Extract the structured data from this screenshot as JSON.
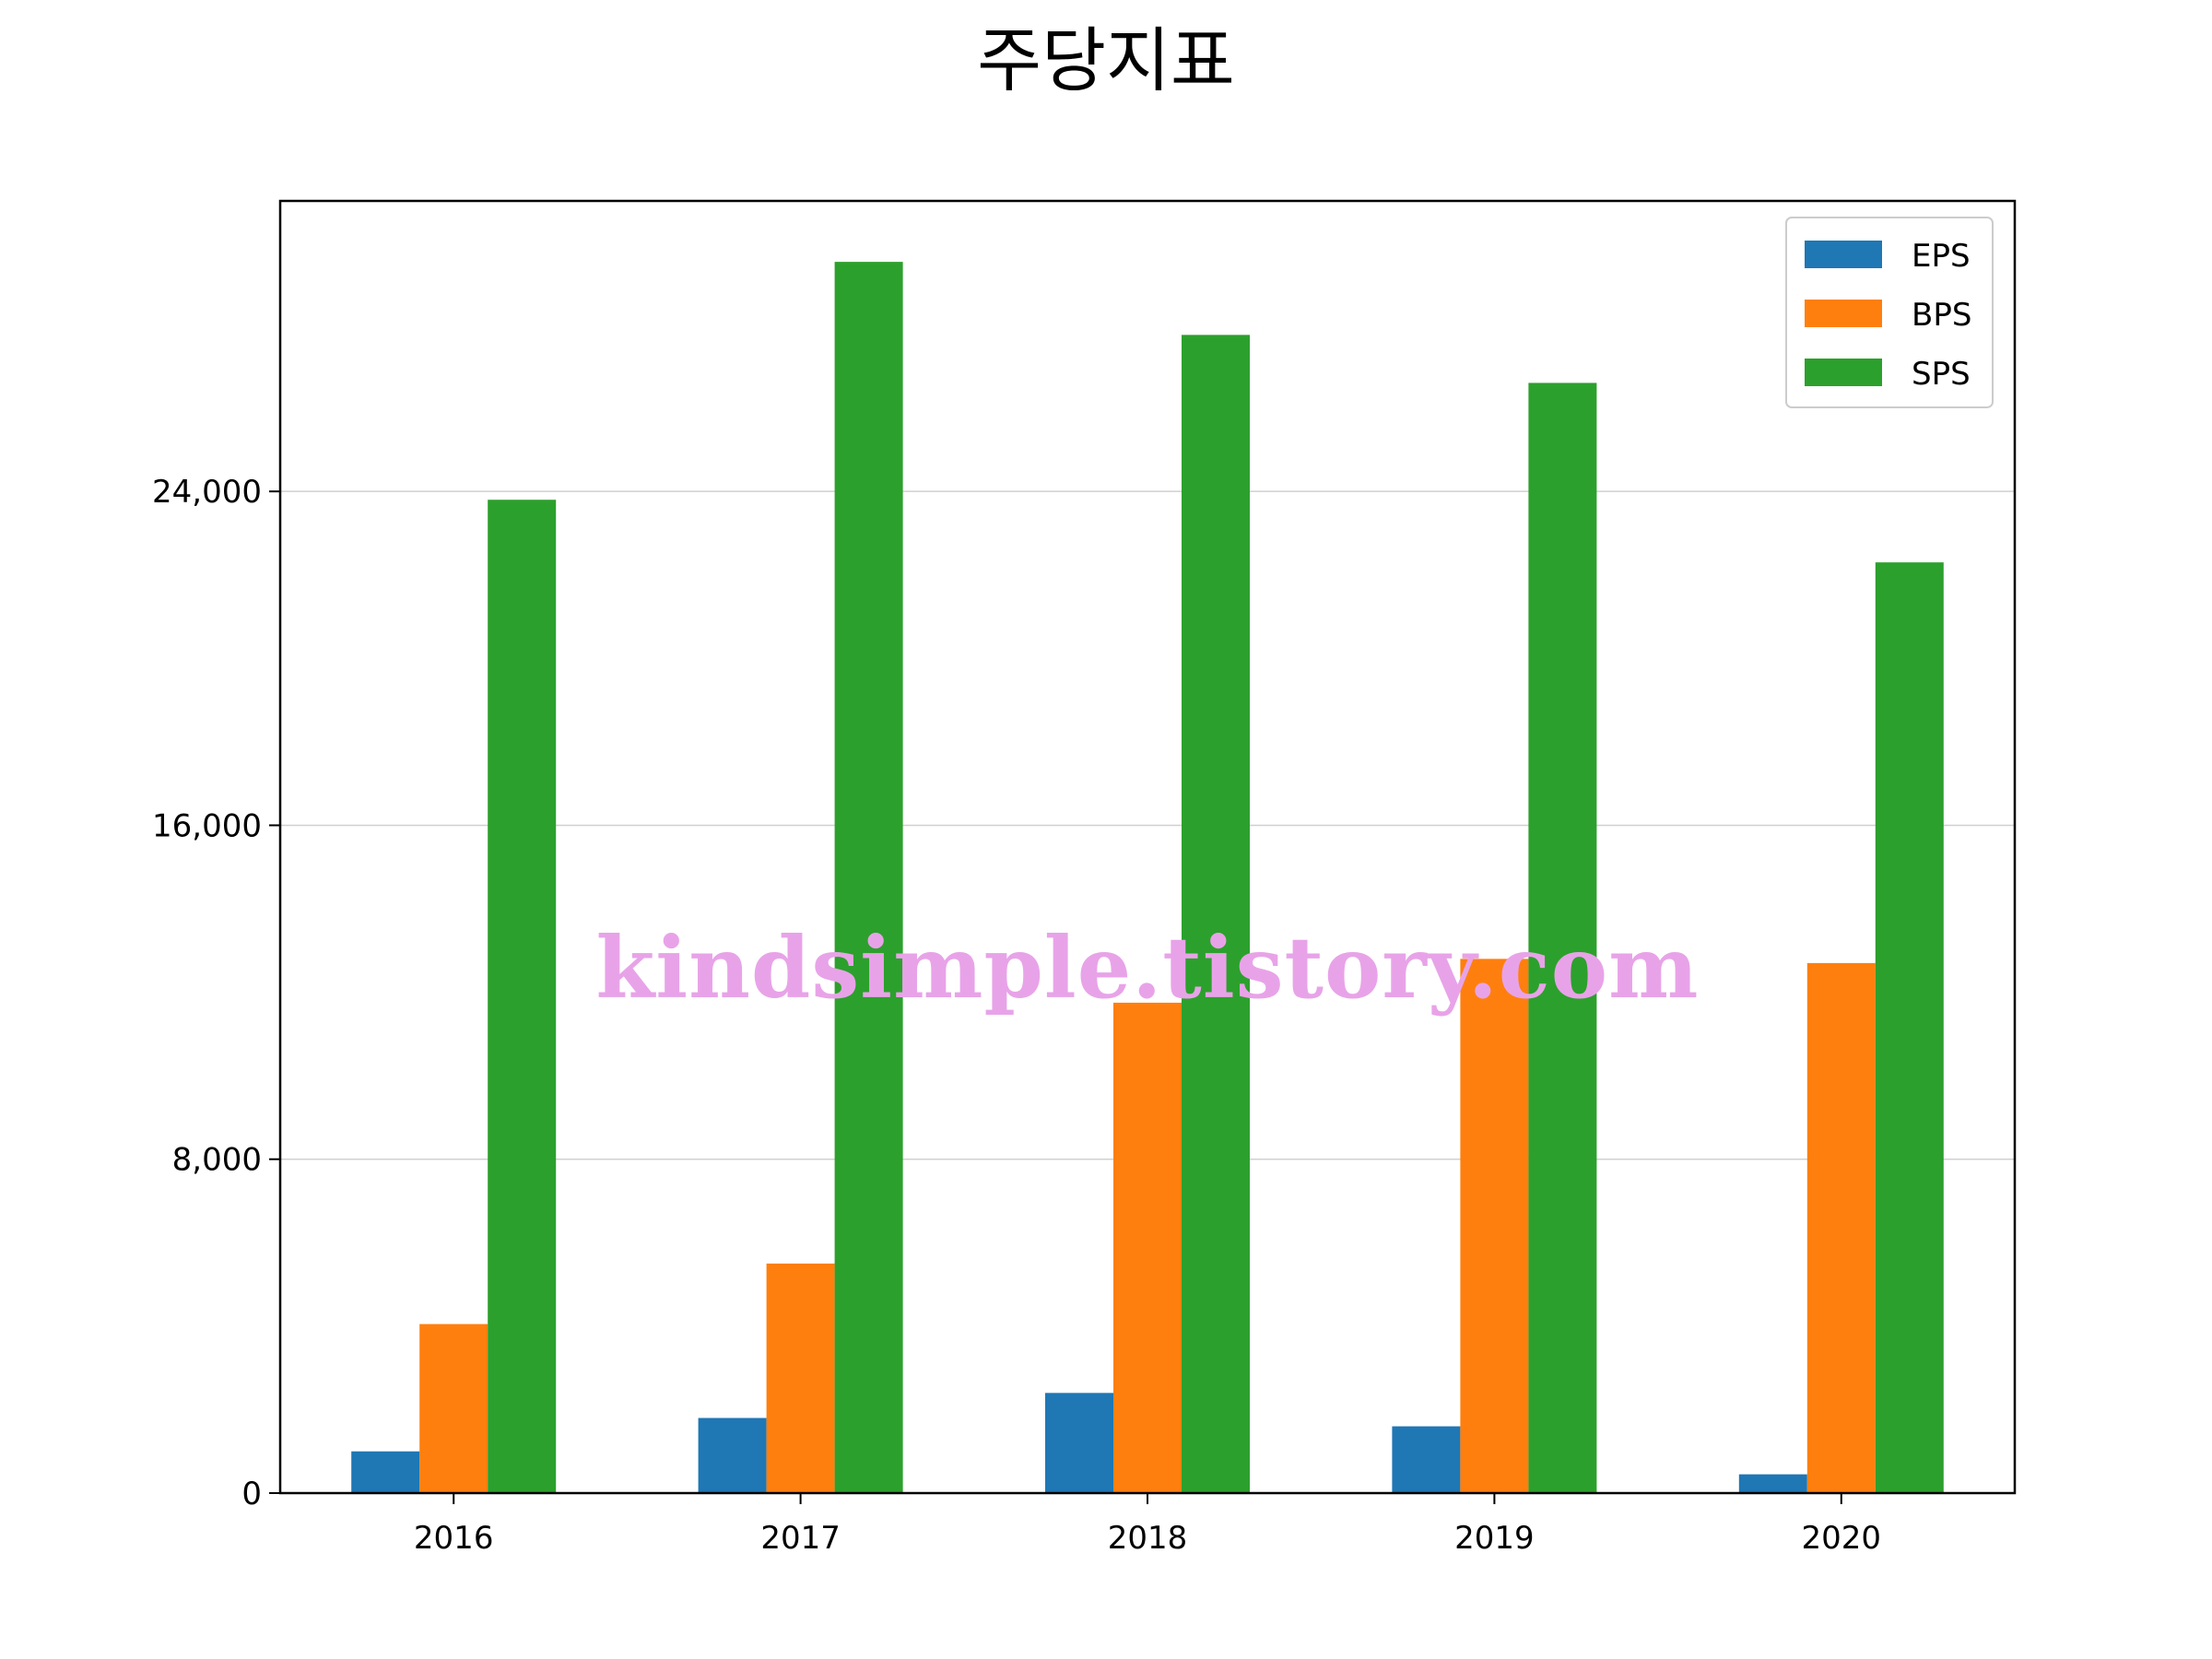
{
  "chart_data": {
    "type": "bar",
    "title": "주당지표",
    "xlabel": "",
    "ylabel": "",
    "categories": [
      "2016",
      "2017",
      "2018",
      "2019",
      "2020"
    ],
    "series": [
      {
        "name": "EPS",
        "color": "#1f77b4",
        "values": [
          1000,
          1800,
          2400,
          1600,
          450
        ]
      },
      {
        "name": "BPS",
        "color": "#ff7f0e",
        "values": [
          4050,
          5500,
          11750,
          12800,
          12700
        ]
      },
      {
        "name": "SPS",
        "color": "#2ca02c",
        "values": [
          23800,
          29500,
          27750,
          26600,
          22300
        ]
      }
    ],
    "ylim": [
      0,
      30960
    ],
    "yticks": [
      0,
      8000,
      16000,
      24000
    ],
    "ytick_labels": [
      "0",
      "8,000",
      "16,000",
      "24,000"
    ],
    "grid": "y",
    "legend_position": "top-right"
  },
  "watermark": "kindsimple.tistory.com"
}
